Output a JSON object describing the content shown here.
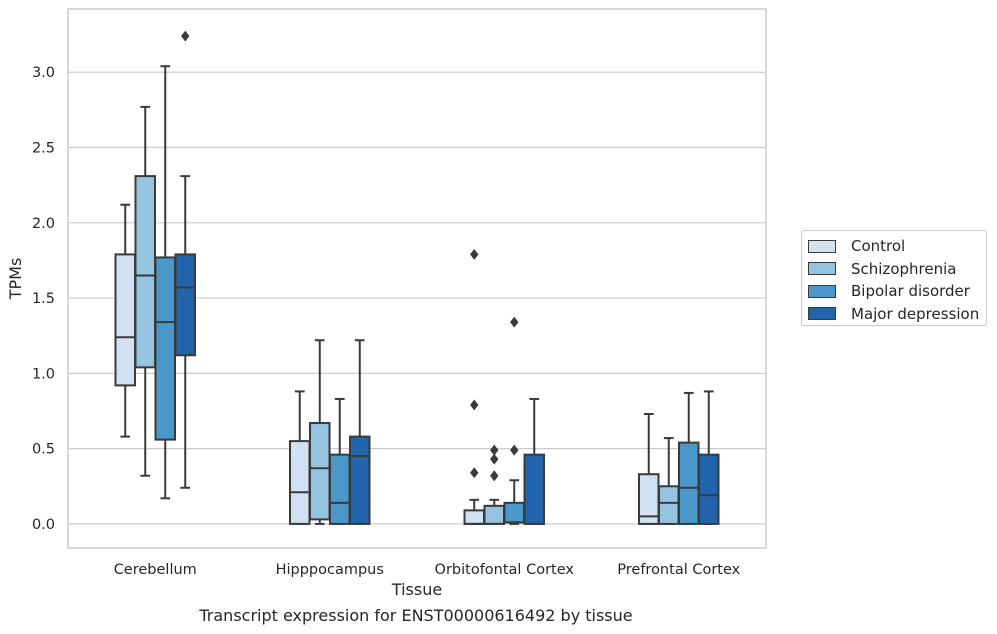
{
  "chart_data": {
    "type": "box",
    "xlabel": "Tissue",
    "ylabel": "TPMs",
    "ylim": [
      -0.16,
      3.42
    ],
    "yticks": [
      0.0,
      0.5,
      1.0,
      1.5,
      2.0,
      2.5,
      3.0
    ],
    "ytick_labels": [
      "0.0",
      "0.5",
      "1.0",
      "1.5",
      "2.0",
      "2.5",
      "3.0"
    ],
    "grid": "horizontal",
    "legend_position": "right",
    "categories": [
      "Cerebellum",
      "Hipppocampus",
      "Orbitofontal Cortex",
      "Prefrontal Cortex"
    ],
    "series": [
      {
        "name": "Control",
        "color": "#d0e1f2",
        "boxes": [
          {
            "whislo": 0.58,
            "q1": 0.92,
            "med": 1.24,
            "q3": 1.79,
            "whishi": 2.12,
            "fliers": []
          },
          {
            "whislo": 0.0,
            "q1": 0.0,
            "med": 0.21,
            "q3": 0.55,
            "whishi": 0.88,
            "fliers": []
          },
          {
            "whislo": 0.0,
            "q1": 0.0,
            "med": 0.0,
            "q3": 0.09,
            "whishi": 0.16,
            "fliers": [
              0.34,
              0.79,
              1.79
            ]
          },
          {
            "whislo": 0.0,
            "q1": 0.0,
            "med": 0.05,
            "q3": 0.33,
            "whishi": 0.73,
            "fliers": []
          }
        ]
      },
      {
        "name": "Schizophrenia",
        "color": "#94c4df",
        "boxes": [
          {
            "whislo": 0.32,
            "q1": 1.04,
            "med": 1.65,
            "q3": 2.31,
            "whishi": 2.77,
            "fliers": []
          },
          {
            "whislo": 0.0,
            "q1": 0.03,
            "med": 0.37,
            "q3": 0.67,
            "whishi": 1.22,
            "fliers": []
          },
          {
            "whislo": 0.0,
            "q1": 0.0,
            "med": 0.0,
            "q3": 0.12,
            "whishi": 0.16,
            "fliers": [
              0.32,
              0.43,
              0.49
            ]
          },
          {
            "whislo": 0.0,
            "q1": 0.0,
            "med": 0.14,
            "q3": 0.25,
            "whishi": 0.57,
            "fliers": []
          }
        ]
      },
      {
        "name": "Bipolar disorder",
        "color": "#4a98c9",
        "boxes": [
          {
            "whislo": 0.17,
            "q1": 0.56,
            "med": 1.34,
            "q3": 1.77,
            "whishi": 3.04,
            "fliers": []
          },
          {
            "whislo": 0.0,
            "q1": 0.0,
            "med": 0.14,
            "q3": 0.46,
            "whishi": 0.83,
            "fliers": []
          },
          {
            "whislo": 0.0,
            "q1": 0.01,
            "med": 0.01,
            "q3": 0.14,
            "whishi": 0.29,
            "fliers": [
              0.49,
              1.34
            ]
          },
          {
            "whislo": 0.0,
            "q1": 0.0,
            "med": 0.24,
            "q3": 0.54,
            "whishi": 0.87,
            "fliers": []
          }
        ]
      },
      {
        "name": "Major depression",
        "color": "#2164ab",
        "boxes": [
          {
            "whislo": 0.24,
            "q1": 1.12,
            "med": 1.57,
            "q3": 1.79,
            "whishi": 2.31,
            "fliers": [
              3.24
            ]
          },
          {
            "whislo": 0.0,
            "q1": 0.0,
            "med": 0.45,
            "q3": 0.58,
            "whishi": 1.22,
            "fliers": []
          },
          {
            "whislo": 0.0,
            "q1": 0.0,
            "med": 0.0,
            "q3": 0.46,
            "whishi": 0.83,
            "fliers": []
          },
          {
            "whislo": 0.0,
            "q1": 0.0,
            "med": 0.19,
            "q3": 0.46,
            "whishi": 0.88,
            "fliers": []
          }
        ]
      }
    ]
  },
  "caption": "Transcript expression for ENST00000616492 by tissue"
}
